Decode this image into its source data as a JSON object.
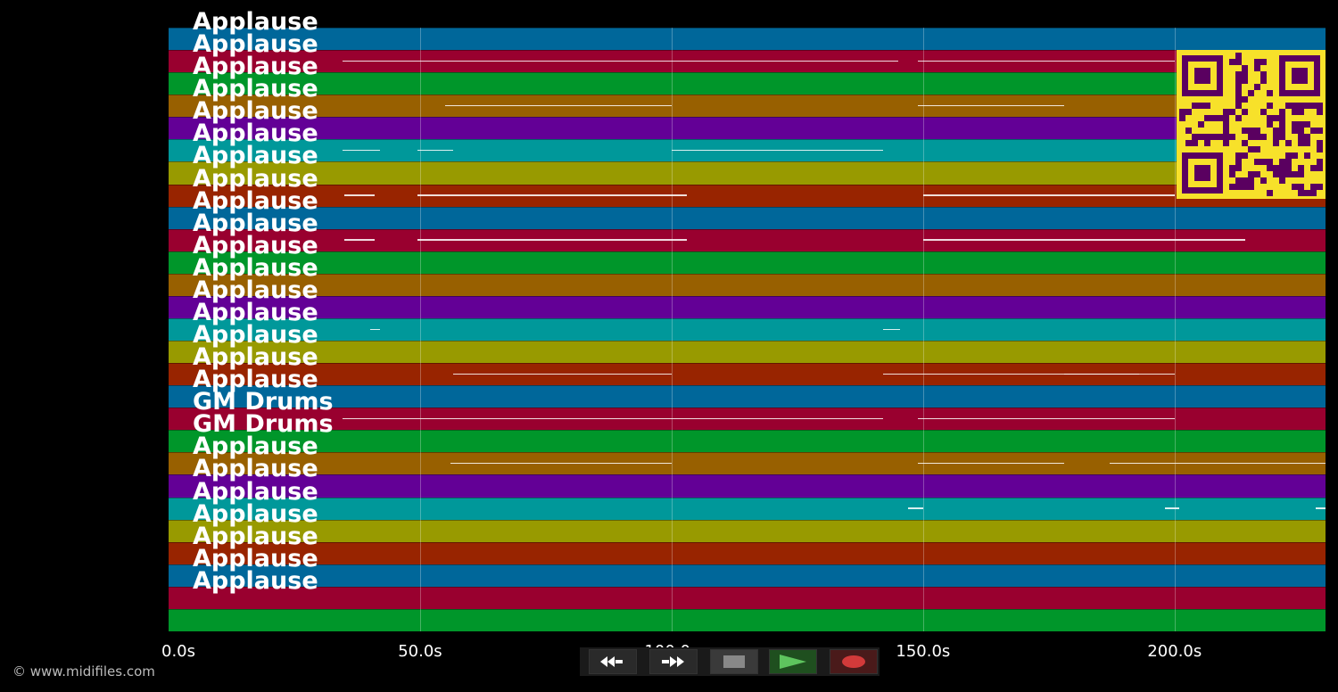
{
  "tracks": [
    {
      "name": "Applause",
      "color": "#00679a"
    },
    {
      "name": "Applause",
      "color": "#99002f"
    },
    {
      "name": "Applause",
      "color": "#00962a"
    },
    {
      "name": "Applause",
      "color": "#986000"
    },
    {
      "name": "Applause",
      "color": "#630096"
    },
    {
      "name": "Applause",
      "color": "#00989a"
    },
    {
      "name": "Applause",
      "color": "#989a00"
    },
    {
      "name": "Applause",
      "color": "#982400"
    },
    {
      "name": "Applause",
      "color": "#00679a"
    },
    {
      "name": "Applause",
      "color": "#99002f"
    },
    {
      "name": "Applause",
      "color": "#00962a"
    },
    {
      "name": "Applause",
      "color": "#986000"
    },
    {
      "name": "Applause",
      "color": "#630096"
    },
    {
      "name": "Applause",
      "color": "#00989a"
    },
    {
      "name": "Applause",
      "color": "#989a00"
    },
    {
      "name": "Applause",
      "color": "#982400"
    },
    {
      "name": "Applause",
      "color": "#00679a"
    },
    {
      "name": "GM Drums",
      "color": "#99002f"
    },
    {
      "name": "GM Drums",
      "color": "#00962a"
    },
    {
      "name": "Applause",
      "color": "#986000"
    },
    {
      "name": "Applause",
      "color": "#630096"
    },
    {
      "name": "Applause",
      "color": "#00989a"
    },
    {
      "name": "Applause",
      "color": "#989a00"
    },
    {
      "name": "Applause",
      "color": "#982400"
    },
    {
      "name": "Applause",
      "color": "#00679a"
    },
    {
      "name": "Applause",
      "color": "#99002f"
    },
    {
      "name": "",
      "color": "#00962a"
    }
  ],
  "timeline": {
    "duration_s": 230,
    "ticks": [
      {
        "seconds": 0,
        "label": "0.0s"
      },
      {
        "seconds": 50,
        "label": "50.0s"
      },
      {
        "seconds": 100,
        "label": "100.0s"
      },
      {
        "seconds": 150,
        "label": "150.0s"
      },
      {
        "seconds": 200,
        "label": "200.0s"
      }
    ]
  },
  "notes": [
    {
      "track": 1,
      "start": 34.5,
      "end": 145
    },
    {
      "track": 1,
      "start": 149,
      "end": 200
    },
    {
      "track": 3,
      "start": 55,
      "end": 100
    },
    {
      "track": 3,
      "start": 149,
      "end": 178
    },
    {
      "track": 5,
      "start": 34.5,
      "end": 42
    },
    {
      "track": 5,
      "start": 49.5,
      "end": 56.5
    },
    {
      "track": 5,
      "start": 100,
      "end": 142
    },
    {
      "track": 7,
      "start": 35,
      "end": 41
    },
    {
      "track": 7,
      "start": 49.5,
      "end": 103
    },
    {
      "track": 7,
      "start": 150,
      "end": 200
    },
    {
      "track": 9,
      "start": 35,
      "end": 41
    },
    {
      "track": 9,
      "start": 49.5,
      "end": 103
    },
    {
      "track": 9,
      "start": 150,
      "end": 214
    },
    {
      "track": 13,
      "start": 40,
      "end": 42
    },
    {
      "track": 13,
      "start": 142,
      "end": 145.5
    },
    {
      "track": 15,
      "start": 56.5,
      "end": 100
    },
    {
      "track": 15,
      "start": 142,
      "end": 149
    },
    {
      "track": 15,
      "start": 149,
      "end": 193
    },
    {
      "track": 15,
      "start": 178,
      "end": 200
    },
    {
      "track": 17,
      "start": 34.5,
      "end": 142
    },
    {
      "track": 17,
      "start": 149,
      "end": 200
    },
    {
      "track": 19,
      "start": 56,
      "end": 100
    },
    {
      "track": 19,
      "start": 149,
      "end": 178
    },
    {
      "track": 19,
      "start": 187,
      "end": 230
    },
    {
      "track": 21,
      "start": 147,
      "end": 150
    },
    {
      "track": 21,
      "start": 198,
      "end": 201
    },
    {
      "track": 21,
      "start": 228,
      "end": 230
    }
  ],
  "copyright": "© www.midifiles.com",
  "controls": [
    {
      "name": "rewind-button",
      "icon": "rewind-icon",
      "bg": "#2a2a2a"
    },
    {
      "name": "fast-forward-button",
      "icon": "fast-forward-icon",
      "bg": "#2a2a2a"
    },
    {
      "name": "stop-button",
      "icon": "stop-icon",
      "bg": "#3a3a3a"
    },
    {
      "name": "play-button",
      "icon": "play-icon",
      "bg": "#1f4f1f"
    },
    {
      "name": "record-button",
      "icon": "record-icon",
      "bg": "#4a1a1a"
    }
  ]
}
